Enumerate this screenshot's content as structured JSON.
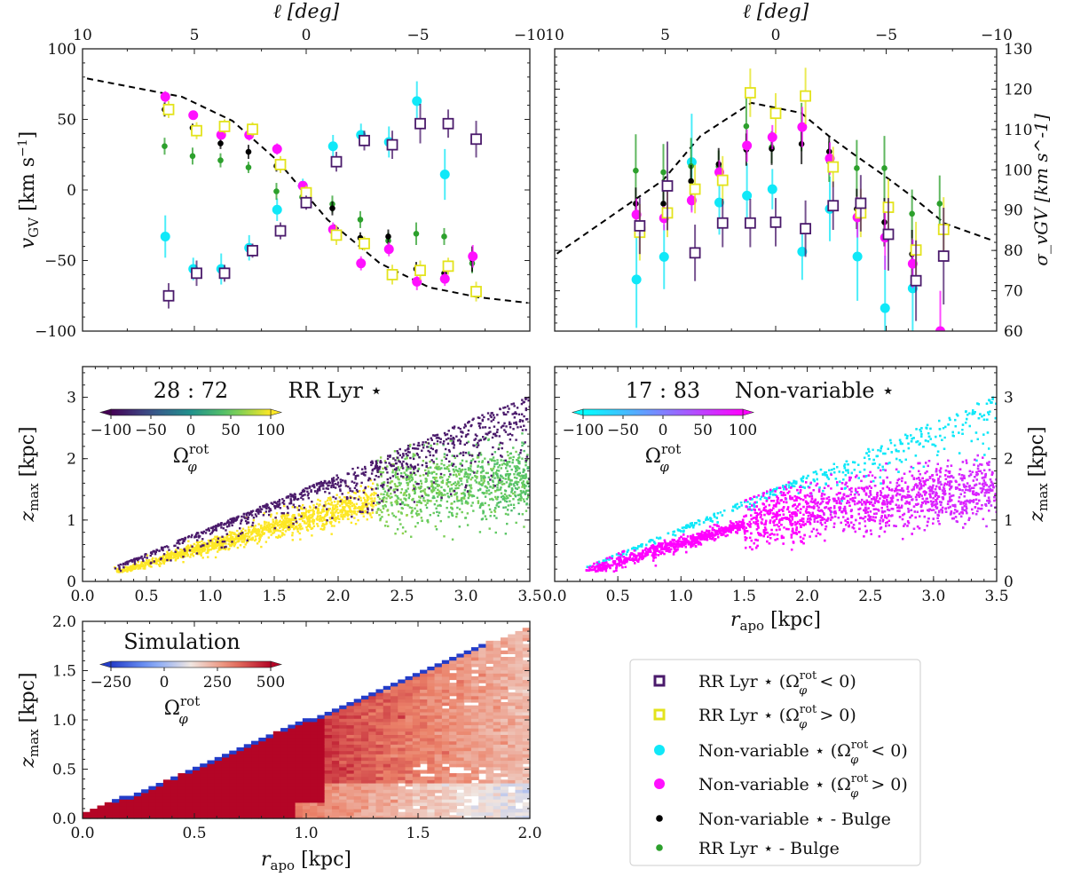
{
  "colors": {
    "rr_neg": "#4a1a6b",
    "rr_pos": "#e3e31c",
    "nv_neg": "#10e8f8",
    "nv_pos": "#ff10ff",
    "nv_bulge": "#000000",
    "rr_bulge": "#2ca02c",
    "model": "#000000"
  },
  "axis_text": {
    "l_label": "ℓ [deg]",
    "vgv_label_main": "v",
    "vgv_label_sub": "GV",
    "vgv_label_unit": " [km s",
    "vgv_label_exp": "−1",
    "vgv_label_close": "]",
    "sigma_label_main": "σ",
    "sigma_label_sub": "vGV",
    "zmax_main": "z",
    "zmax_sub": "max",
    "zmax_unit": " [kpc]",
    "rapo_main": "r",
    "rapo_sub": "apo",
    "rapo_unit": " [kpc]",
    "omega": "Ω",
    "omega_sup": "rot",
    "omega_sub": "φ"
  },
  "chart_data": [
    {
      "id": "vgv",
      "type": "scatter",
      "xlabel": "ℓ [deg]",
      "ylabel": "v_GV [km s^-1]",
      "xlim": [
        10,
        -10
      ],
      "ylim": [
        -100,
        100
      ],
      "xticks": [
        10,
        5,
        0,
        -5,
        -10
      ],
      "xtick_labels": [
        "10",
        "5",
        "0",
        "−5",
        "−10"
      ],
      "yticks": [
        -100,
        -50,
        0,
        50,
        100
      ],
      "ytick_labels": [
        "−100",
        "−50",
        "0",
        "50",
        "100"
      ],
      "x": [
        6.25,
        5.0,
        3.75,
        2.5,
        1.25,
        0.1,
        -1.25,
        -2.5,
        -3.75,
        -5.0,
        -6.25,
        -7.5
      ],
      "series": [
        {
          "key": "rr_neg",
          "marker": "square",
          "values": [
            -75,
            -59,
            -59,
            -43,
            -29,
            -9,
            20,
            35,
            32,
            47,
            47,
            36
          ],
          "err": [
            9,
            9,
            6,
            5,
            6,
            5,
            7,
            7,
            10,
            14,
            10,
            13
          ]
        },
        {
          "key": "rr_pos",
          "marker": "square",
          "values": [
            57,
            42,
            45,
            43,
            18,
            -2,
            -32,
            -38,
            -60,
            -57,
            -54,
            -72
          ],
          "err": [
            6,
            6,
            5,
            5,
            6,
            5,
            7,
            5,
            7,
            7,
            6,
            7
          ]
        },
        {
          "key": "nv_neg",
          "marker": "circle",
          "values": [
            -33,
            -56,
            -56,
            -41,
            -14,
            3,
            31,
            39,
            34,
            63,
            11,
            null
          ],
          "err": [
            15,
            8,
            11,
            9,
            8,
            5,
            8,
            8,
            11,
            14,
            18,
            null
          ]
        },
        {
          "key": "nv_pos",
          "marker": "circle",
          "values": [
            66,
            53,
            39,
            39,
            29,
            3,
            -28,
            -52,
            -42,
            -65,
            -63,
            -47
          ],
          "err": [
            4,
            3,
            3,
            4,
            4,
            3,
            5,
            5,
            5,
            6,
            5,
            8
          ]
        },
        {
          "key": "nv_bulge",
          "marker": "dot",
          "values": [
            57,
            44,
            33,
            27,
            17,
            3,
            -13,
            -34,
            -33,
            -56,
            -59,
            -49
          ],
          "err": [
            5,
            3,
            4,
            5,
            4,
            3,
            5,
            4,
            5,
            5,
            4,
            9
          ]
        },
        {
          "key": "rr_bulge",
          "marker": "dot",
          "values": [
            31,
            24,
            21,
            16,
            -1,
            -5,
            -10,
            -21,
            -36,
            -31,
            -33,
            -52
          ],
          "err": [
            6,
            6,
            5,
            4,
            6,
            5,
            6,
            6,
            6,
            8,
            6,
            7
          ]
        }
      ],
      "model_line": {
        "x": [
          9.8,
          5.55,
          3.3,
          1.3,
          -0.95,
          -3.3,
          -5.5,
          -7.7,
          -9.9
        ],
        "y": [
          79,
          66,
          49,
          21,
          -21,
          -52,
          -69,
          -76,
          -80
        ]
      }
    },
    {
      "id": "sigma",
      "type": "scatter",
      "xlabel": "ℓ [deg]",
      "ylabel": "σ_vGV [km s^-1]",
      "xlim": [
        10,
        -10
      ],
      "ylim": [
        60,
        130
      ],
      "xticks": [
        10,
        5,
        0,
        -5,
        -10
      ],
      "xtick_labels": [
        "10",
        "5",
        "0",
        "−5",
        "−10"
      ],
      "yticks": [
        60,
        70,
        80,
        90,
        100,
        110,
        120,
        130
      ],
      "ytick_labels": [
        "60",
        "70",
        "80",
        "90",
        "100",
        "110",
        "120",
        "130"
      ],
      "x": [
        6.25,
        5.0,
        3.75,
        2.5,
        1.25,
        0.1,
        -1.25,
        -2.5,
        -3.75,
        -5.0,
        -6.25,
        -7.5
      ],
      "series": [
        {
          "key": "rr_neg",
          "marker": "square",
          "values": [
            86.1,
            96,
            79.4,
            86.8,
            86.8,
            87,
            85.4,
            91.1,
            91.7,
            84,
            72.5,
            78.6
          ],
          "err": [
            7,
            11,
            7,
            6,
            6,
            6,
            7,
            6,
            7,
            9,
            10,
            12
          ]
        },
        {
          "key": "rr_pos",
          "marker": "square",
          "values": [
            84.5,
            89.3,
            95.2,
            97.4,
            119.1,
            114,
            118.3,
            100.7,
            89.3,
            90.7,
            80.1,
            85.2
          ],
          "err": [
            7,
            6,
            6,
            6,
            6,
            5,
            7,
            5,
            6,
            7,
            7,
            8
          ]
        },
        {
          "key": "nv_neg",
          "marker": "circle",
          "values": [
            72.8,
            78.4,
            101.9,
            91.9,
            93.6,
            95.2,
            79.7,
            90.3,
            78.5,
            65.7,
            70.6,
            null
          ],
          "err": [
            12,
            8,
            12,
            8,
            8,
            5,
            7,
            8,
            11,
            13,
            12,
            null
          ]
        },
        {
          "key": "nv_pos",
          "marker": "circle",
          "values": [
            88.9,
            88,
            92.4,
            99.4,
            106,
            108.1,
            110.6,
            102.8,
            88.2,
            83.2,
            76.7,
            60
          ],
          "err": [
            4,
            3,
            3,
            3,
            4,
            3,
            5,
            4,
            5,
            8,
            6,
            10
          ]
        },
        {
          "key": "nv_bulge",
          "marker": "dot",
          "values": [
            91.6,
            91.6,
            97.2,
            101.4,
            105,
            105.2,
            106.4,
            104.5,
            90.3,
            87,
            79.1,
            null
          ],
          "err": [
            4,
            4,
            4,
            4,
            4,
            4,
            5,
            4,
            5,
            6,
            6,
            null
          ]
        },
        {
          "key": "rr_bulge",
          "marker": "dot",
          "values": [
            99.8,
            99.4,
            100.9,
            100.8,
            110.8,
            105.6,
            110.6,
            102,
            100.4,
            100.4,
            89.1,
            91.6
          ],
          "err": [
            9,
            7,
            7,
            4,
            7,
            4,
            6,
            5,
            7,
            8,
            6,
            7
          ]
        }
      ],
      "model_line": {
        "x": [
          9.9,
          5.1,
          3.4,
          1.1,
          -1.15,
          -2.4,
          -3.6,
          -4.85,
          -6.1,
          -7.65,
          -9.9
        ],
        "y": [
          79.2,
          97.4,
          108.4,
          116.6,
          114.1,
          108.4,
          103.6,
          98.8,
          93.7,
          86.7,
          82.3
        ]
      }
    },
    {
      "id": "rrlyr_orbits",
      "type": "scatter",
      "xlim": [
        0,
        3.5
      ],
      "ylim": [
        0,
        3.5
      ],
      "xticks": [
        0,
        0.5,
        1,
        1.5,
        2,
        2.5,
        3,
        3.5
      ],
      "xtick_labels": [
        "0.0",
        "0.5",
        "1.0",
        "1.5",
        "2.0",
        "2.5",
        "3.0",
        "3.5"
      ],
      "yticks": [
        0,
        1,
        2,
        3
      ],
      "ytick_labels": [
        "0",
        "1",
        "2",
        "3"
      ],
      "ylabel": "z_max [kpc]",
      "ratio": "28 : 72",
      "panel_label": "RR Lyr ⋆",
      "colorbar": {
        "colormap": "viridis",
        "range": [
          -100,
          100
        ],
        "ticks": [
          -100,
          -50,
          0,
          50,
          100
        ],
        "tick_labels": [
          "−100",
          "−50",
          "0",
          "50",
          "100"
        ],
        "extend": "both"
      }
    },
    {
      "id": "nonvar_orbits",
      "type": "scatter",
      "xlim": [
        0,
        3.5
      ],
      "ylim": [
        0,
        3.5
      ],
      "xticks": [
        0,
        0.5,
        1,
        1.5,
        2,
        2.5,
        3,
        3.5
      ],
      "xtick_labels": [
        "0.0",
        "0.5",
        "1.0",
        "1.5",
        "2.0",
        "2.5",
        "3.0",
        "3.5"
      ],
      "yticks": [
        0,
        1,
        2,
        3
      ],
      "ytick_labels": [
        "0",
        "1",
        "2",
        "3"
      ],
      "xlabel": "r_apo [kpc]",
      "ylabel": "z_max [kpc]",
      "ratio": "17 : 83",
      "panel_label": "Non-variable ⋆",
      "colorbar": {
        "colormap": "cool",
        "range": [
          -100,
          100
        ],
        "ticks": [
          -100,
          -50,
          0,
          50,
          100
        ],
        "tick_labels": [
          "−100",
          "−50",
          "0",
          "50",
          "100"
        ],
        "extend": "both"
      }
    },
    {
      "id": "simulation",
      "type": "heatmap",
      "xlim": [
        0,
        2
      ],
      "ylim": [
        0,
        2
      ],
      "xticks": [
        0,
        0.5,
        1,
        1.5,
        2
      ],
      "xtick_labels": [
        "0.0",
        "0.5",
        "1.0",
        "1.5",
        "2.0"
      ],
      "yticks": [
        0,
        0.5,
        1,
        1.5,
        2
      ],
      "ytick_labels": [
        "0.0",
        "0.5",
        "1.0",
        "1.5",
        "2.0"
      ],
      "xlabel": "r_apo [kpc]",
      "ylabel": "z_max [kpc]",
      "panel_label": "Simulation",
      "colorbar": {
        "colormap": "coolwarm",
        "range": [
          -250,
          500
        ],
        "ticks": [
          -250,
          0,
          250,
          500
        ],
        "tick_labels": [
          "−250",
          "0",
          "250",
          "500"
        ],
        "extend": "both"
      }
    }
  ],
  "legend": {
    "items": [
      {
        "key": "rr_neg",
        "marker": "square",
        "name": "RR Lyr ⋆ (",
        "cond": " < 0)"
      },
      {
        "key": "rr_pos",
        "marker": "square",
        "name": "RR Lyr ⋆ (",
        "cond": " > 0)"
      },
      {
        "key": "nv_neg",
        "marker": "circle",
        "name": "Non-variable ⋆ (",
        "cond": " < 0)"
      },
      {
        "key": "nv_pos",
        "marker": "circle",
        "name": "Non-variable ⋆ (",
        "cond": " > 0)"
      },
      {
        "key": "nv_bulge",
        "marker": "dot",
        "name": "Non-variable ⋆ - Bulge",
        "cond": ""
      },
      {
        "key": "rr_bulge",
        "marker": "dot",
        "name": "RR Lyr ⋆ - Bulge",
        "cond": ""
      }
    ]
  }
}
